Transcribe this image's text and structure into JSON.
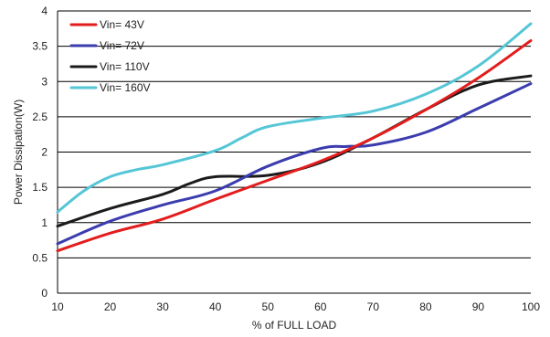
{
  "chart_data": {
    "type": "line",
    "xlabel": "% of FULL LOAD",
    "ylabel": "Power Dissipation(W)",
    "xlim": [
      10,
      100
    ],
    "ylim": [
      0,
      4
    ],
    "xticks": [
      10,
      20,
      30,
      40,
      50,
      60,
      70,
      80,
      90,
      100
    ],
    "yticks": [
      0,
      0.5,
      1,
      1.5,
      2,
      2.5,
      3,
      3.5,
      4
    ],
    "grid": "horizontal",
    "legend": "top-left",
    "series": [
      {
        "name": "Vin= 43V",
        "color": "#e31c1c",
        "points": [
          [
            10,
            0.6
          ],
          [
            20,
            0.85
          ],
          [
            30,
            1.05
          ],
          [
            40,
            1.33
          ],
          [
            50,
            1.6
          ],
          [
            60,
            1.87
          ],
          [
            70,
            2.2
          ],
          [
            80,
            2.6
          ],
          [
            90,
            3.05
          ],
          [
            100,
            3.58
          ]
        ]
      },
      {
        "name": "Vin= 72V",
        "color": "#3b3cae",
        "points": [
          [
            10,
            0.7
          ],
          [
            20,
            1.02
          ],
          [
            30,
            1.25
          ],
          [
            40,
            1.45
          ],
          [
            50,
            1.8
          ],
          [
            60,
            2.05
          ],
          [
            65,
            2.08
          ],
          [
            70,
            2.1
          ],
          [
            80,
            2.28
          ],
          [
            90,
            2.62
          ],
          [
            100,
            2.97
          ]
        ]
      },
      {
        "name": "Vin= 110V",
        "color": "#1b1b1b",
        "points": [
          [
            10,
            0.95
          ],
          [
            20,
            1.2
          ],
          [
            30,
            1.4
          ],
          [
            35,
            1.55
          ],
          [
            40,
            1.65
          ],
          [
            50,
            1.67
          ],
          [
            60,
            1.85
          ],
          [
            70,
            2.2
          ],
          [
            80,
            2.6
          ],
          [
            90,
            2.95
          ],
          [
            100,
            3.08
          ]
        ]
      },
      {
        "name": "Vin= 160V",
        "color": "#55c6d6",
        "points": [
          [
            10,
            1.15
          ],
          [
            15,
            1.45
          ],
          [
            20,
            1.65
          ],
          [
            25,
            1.75
          ],
          [
            30,
            1.82
          ],
          [
            40,
            2.02
          ],
          [
            45,
            2.2
          ],
          [
            50,
            2.36
          ],
          [
            60,
            2.48
          ],
          [
            70,
            2.58
          ],
          [
            80,
            2.82
          ],
          [
            90,
            3.22
          ],
          [
            100,
            3.82
          ]
        ]
      }
    ]
  }
}
